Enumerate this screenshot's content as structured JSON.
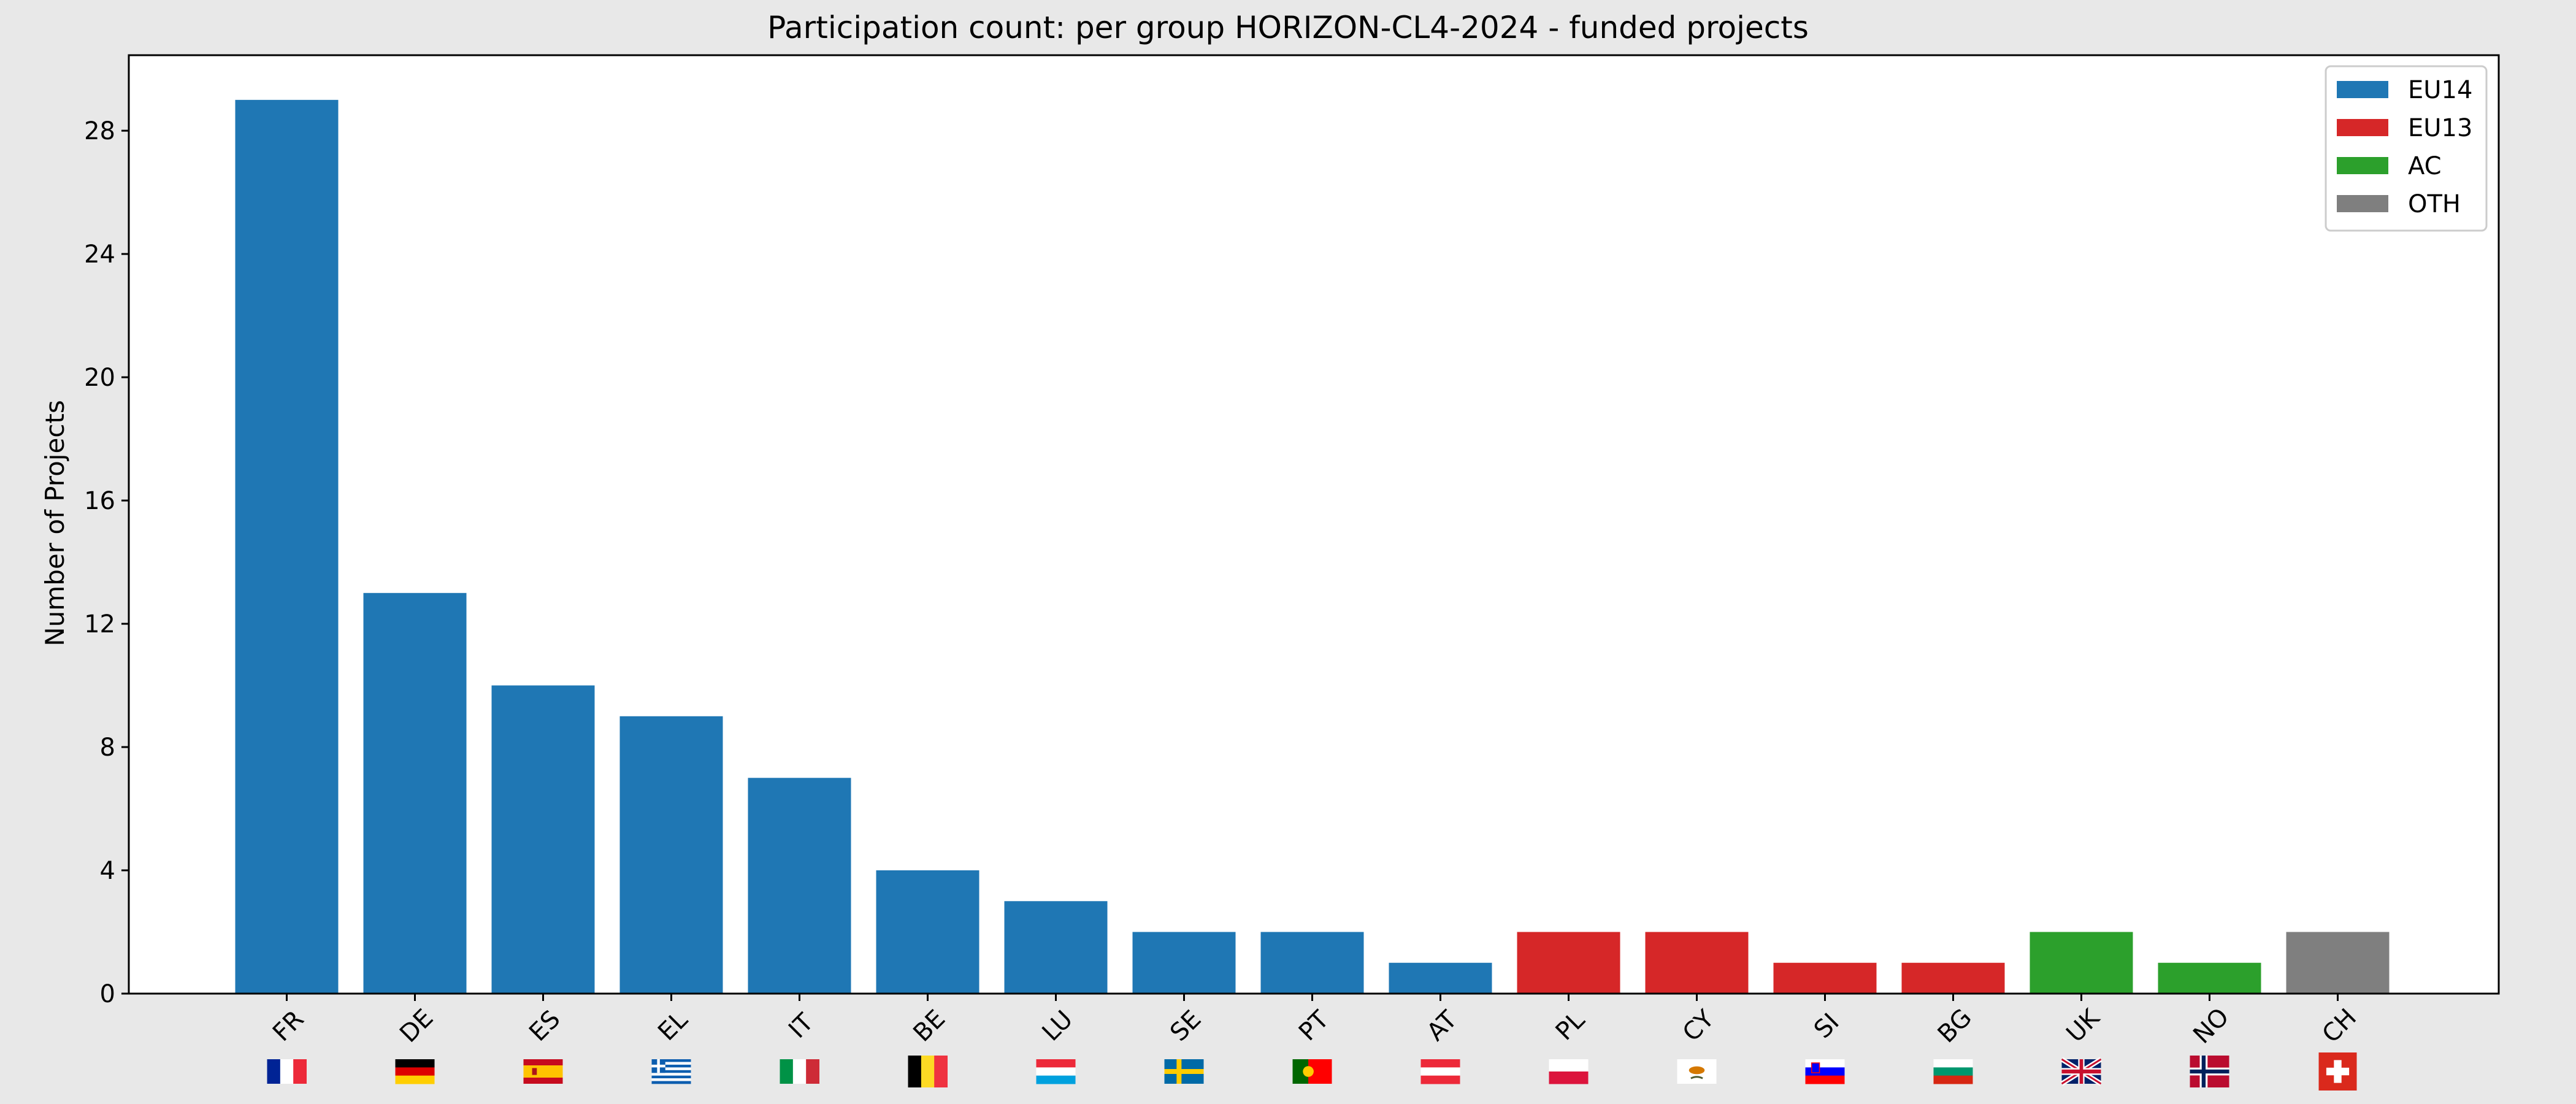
{
  "chart_data": {
    "type": "bar",
    "title": "Participation count: per group HORIZON-CL4-2024 - funded projects",
    "xlabel": "",
    "ylabel": "Number of Projects",
    "ylim": [
      0,
      30.45
    ],
    "yticks": [
      0,
      4,
      8,
      12,
      16,
      20,
      24,
      28
    ],
    "grid": false,
    "legend_position": "top-right",
    "categories": [
      "FR",
      "DE",
      "ES",
      "EL",
      "IT",
      "BE",
      "LU",
      "SE",
      "PT",
      "AT",
      "PL",
      "CY",
      "SI",
      "BG",
      "UK",
      "NO",
      "CH"
    ],
    "values": [
      29,
      13,
      10,
      9,
      7,
      4,
      3,
      2,
      2,
      1,
      2,
      2,
      1,
      1,
      2,
      1,
      2
    ],
    "groups": [
      "EU14",
      "EU14",
      "EU14",
      "EU14",
      "EU14",
      "EU14",
      "EU14",
      "EU14",
      "EU14",
      "EU14",
      "EU13",
      "EU13",
      "EU13",
      "EU13",
      "AC",
      "AC",
      "OTH"
    ],
    "legend": [
      {
        "name": "EU14",
        "color": "#1f77b4"
      },
      {
        "name": "EU13",
        "color": "#d62728"
      },
      {
        "name": "AC",
        "color": "#2ca02c"
      },
      {
        "name": "OTH",
        "color": "#7f7f7f"
      }
    ],
    "flags": [
      "flag-fr-icon",
      "flag-de-icon",
      "flag-es-icon",
      "flag-el-icon",
      "flag-it-icon",
      "flag-be-icon",
      "flag-lu-icon",
      "flag-se-icon",
      "flag-pt-icon",
      "flag-at-icon",
      "flag-pl-icon",
      "flag-cy-icon",
      "flag-si-icon",
      "flag-bg-icon",
      "flag-uk-icon",
      "flag-no-icon",
      "flag-ch-icon"
    ]
  }
}
